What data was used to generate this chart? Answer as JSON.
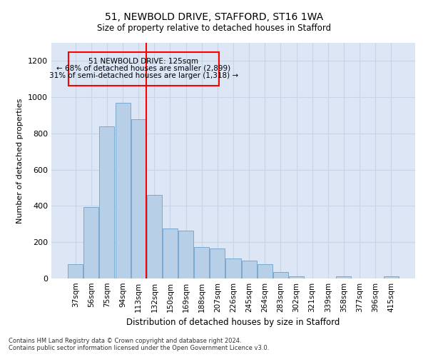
{
  "title_line1": "51, NEWBOLD DRIVE, STAFFORD, ST16 1WA",
  "title_line2": "Size of property relative to detached houses in Stafford",
  "xlabel": "Distribution of detached houses by size in Stafford",
  "ylabel": "Number of detached properties",
  "annotation_line1": "51 NEWBOLD DRIVE: 125sqm",
  "annotation_line2": "← 68% of detached houses are smaller (2,899)",
  "annotation_line3": "31% of semi-detached houses are larger (1,318) →",
  "categories": [
    "37sqm",
    "56sqm",
    "75sqm",
    "94sqm",
    "113sqm",
    "132sqm",
    "150sqm",
    "169sqm",
    "188sqm",
    "207sqm",
    "226sqm",
    "245sqm",
    "264sqm",
    "283sqm",
    "302sqm",
    "321sqm",
    "339sqm",
    "358sqm",
    "377sqm",
    "396sqm",
    "415sqm"
  ],
  "values": [
    80,
    395,
    840,
    970,
    880,
    460,
    275,
    265,
    175,
    165,
    110,
    100,
    80,
    35,
    10,
    0,
    0,
    10,
    0,
    0,
    10
  ],
  "bar_color": "#b8cfe8",
  "bar_edge_color": "#7aa8d0",
  "grid_color": "#c8d4e8",
  "bg_color": "#dce6f5",
  "marker_color": "red",
  "annotation_box_color": "red",
  "ylim": [
    0,
    1300
  ],
  "yticks": [
    0,
    200,
    400,
    600,
    800,
    1000,
    1200
  ],
  "footer_line1": "Contains HM Land Registry data © Crown copyright and database right 2024.",
  "footer_line2": "Contains public sector information licensed under the Open Government Licence v3.0."
}
